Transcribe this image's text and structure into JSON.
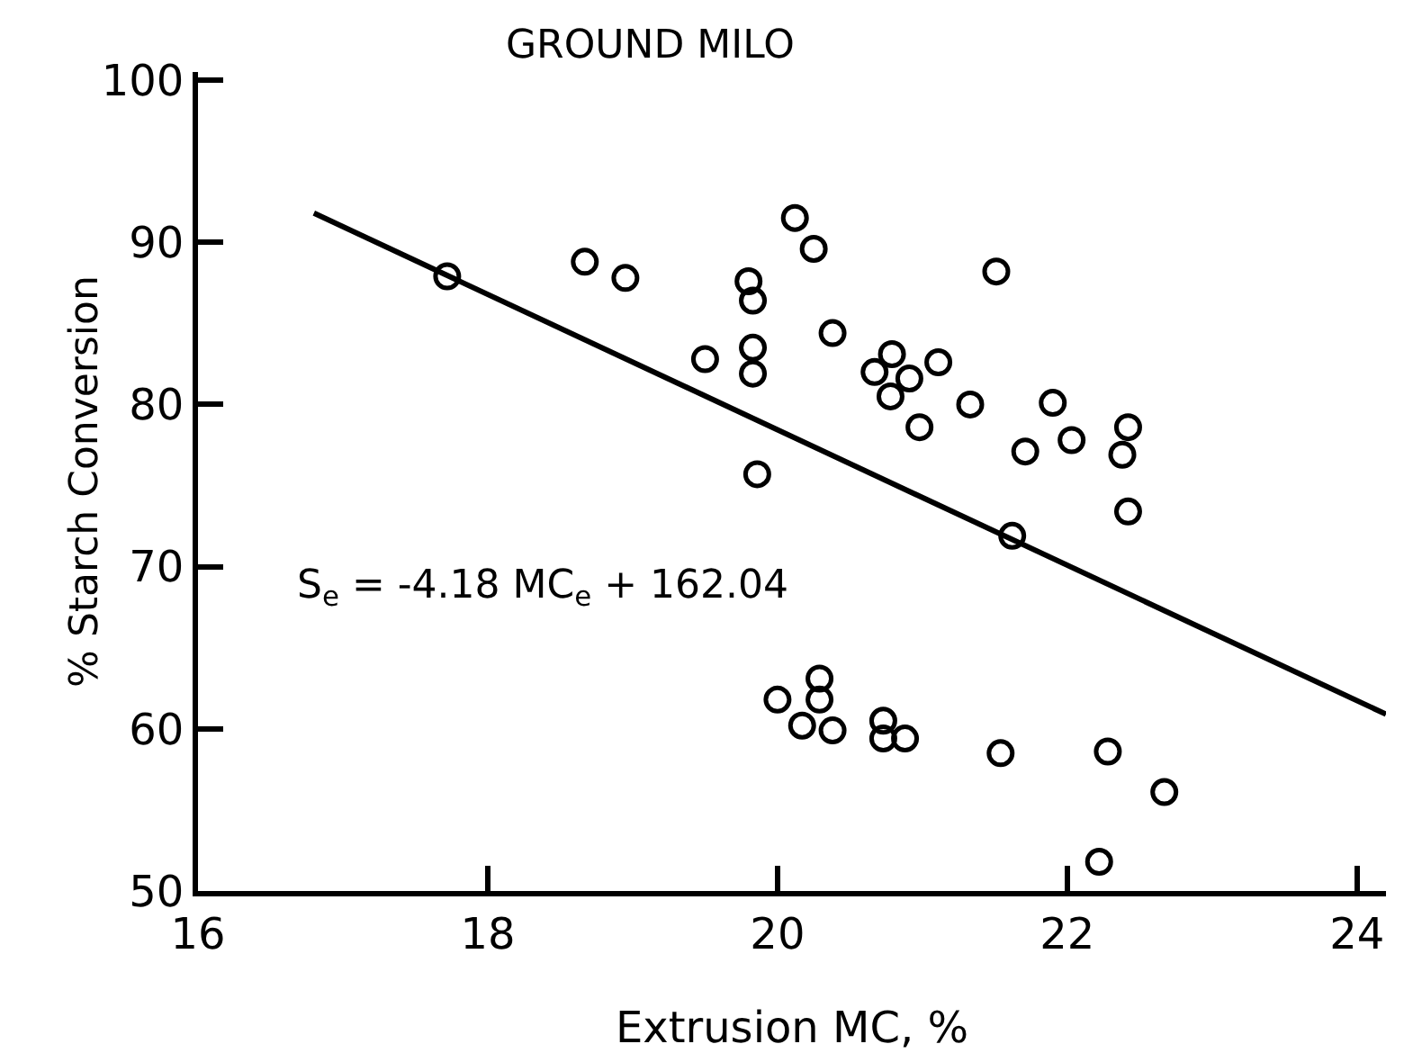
{
  "chart_data": {
    "type": "scatter",
    "title": "GROUND MILO",
    "xlabel": "Extrusion MC, %",
    "ylabel": "% Starch Conversion",
    "annotations": [
      "S$_{e}$ = -4.18 MC$_{e}$ + 162.04"
    ],
    "xlim": [
      16,
      24.2
    ],
    "xticks": [
      16,
      18,
      20,
      22,
      24
    ],
    "ylim": [
      50,
      100.5
    ],
    "yticks": [
      50,
      60,
      70,
      80,
      90,
      100
    ],
    "grid": false,
    "legend": false,
    "series": [
      {
        "color": "#000000",
        "marker": "circle",
        "x": [
          17.72,
          18.67,
          18.95,
          19.8,
          19.83,
          19.5,
          19.83,
          19.83,
          19.86,
          20.12,
          20.25,
          20.38,
          21.51,
          20.79,
          20.67,
          20.91,
          20.78,
          21.11,
          20.98,
          21.33,
          21.9,
          22.03,
          21.71,
          22.42,
          22.38,
          22.42,
          21.62,
          20.0,
          20.29,
          20.29,
          20.17,
          20.38,
          20.73,
          20.73,
          20.88,
          21.54,
          22.28,
          22.67,
          22.22
        ],
        "values": [
          87.9,
          88.8,
          87.8,
          87.6,
          86.4,
          82.8,
          83.5,
          81.9,
          75.7,
          91.5,
          89.6,
          84.4,
          88.2,
          83.1,
          82.0,
          81.6,
          80.5,
          82.6,
          78.6,
          80.0,
          80.1,
          77.8,
          77.1,
          78.6,
          76.9,
          73.4,
          71.9,
          61.8,
          63.1,
          61.8,
          60.2,
          59.9,
          60.5,
          59.4,
          59.4,
          58.5,
          58.6,
          56.1,
          51.8
        ]
      },
      {
        "type": "line",
        "color": "#000000",
        "marker": "none",
        "line_style": "solid",
        "x": [
          16.8,
          24.2
        ],
        "values": [
          91.8,
          60.9
        ]
      }
    ]
  }
}
